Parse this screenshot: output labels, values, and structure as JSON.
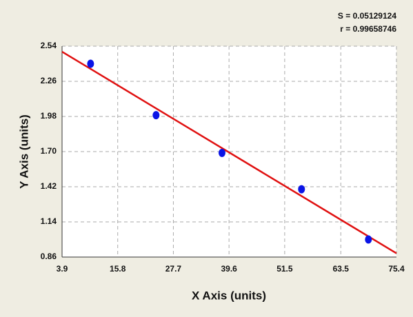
{
  "chart_data": {
    "type": "scatter",
    "annotations": [
      "S = 0.05129124",
      "r = 0.99658746"
    ],
    "x_label": "X Axis (units)",
    "y_label": "Y Axis (units)",
    "x": [
      10,
      24,
      38.1,
      55.1,
      69.4
    ],
    "values": [
      2.4,
      1.99,
      1.69,
      1.4,
      1.0
    ],
    "color": "#0a14e6",
    "fit": {
      "x": [
        3.9,
        75.4
      ],
      "y": [
        2.496,
        0.89
      ],
      "color": "#e01010"
    },
    "xlim": [
      3.9,
      75.4
    ],
    "xticks": [
      3.9,
      15.8,
      27.7,
      39.6,
      51.5,
      63.5,
      75.4
    ],
    "ylim": [
      0.86,
      2.54
    ],
    "yticks": [
      0.86,
      1.14,
      1.42,
      {
        "value": 1.7,
        "label": "1.70"
      },
      1.98,
      2.26,
      2.54
    ],
    "grid": true
  }
}
